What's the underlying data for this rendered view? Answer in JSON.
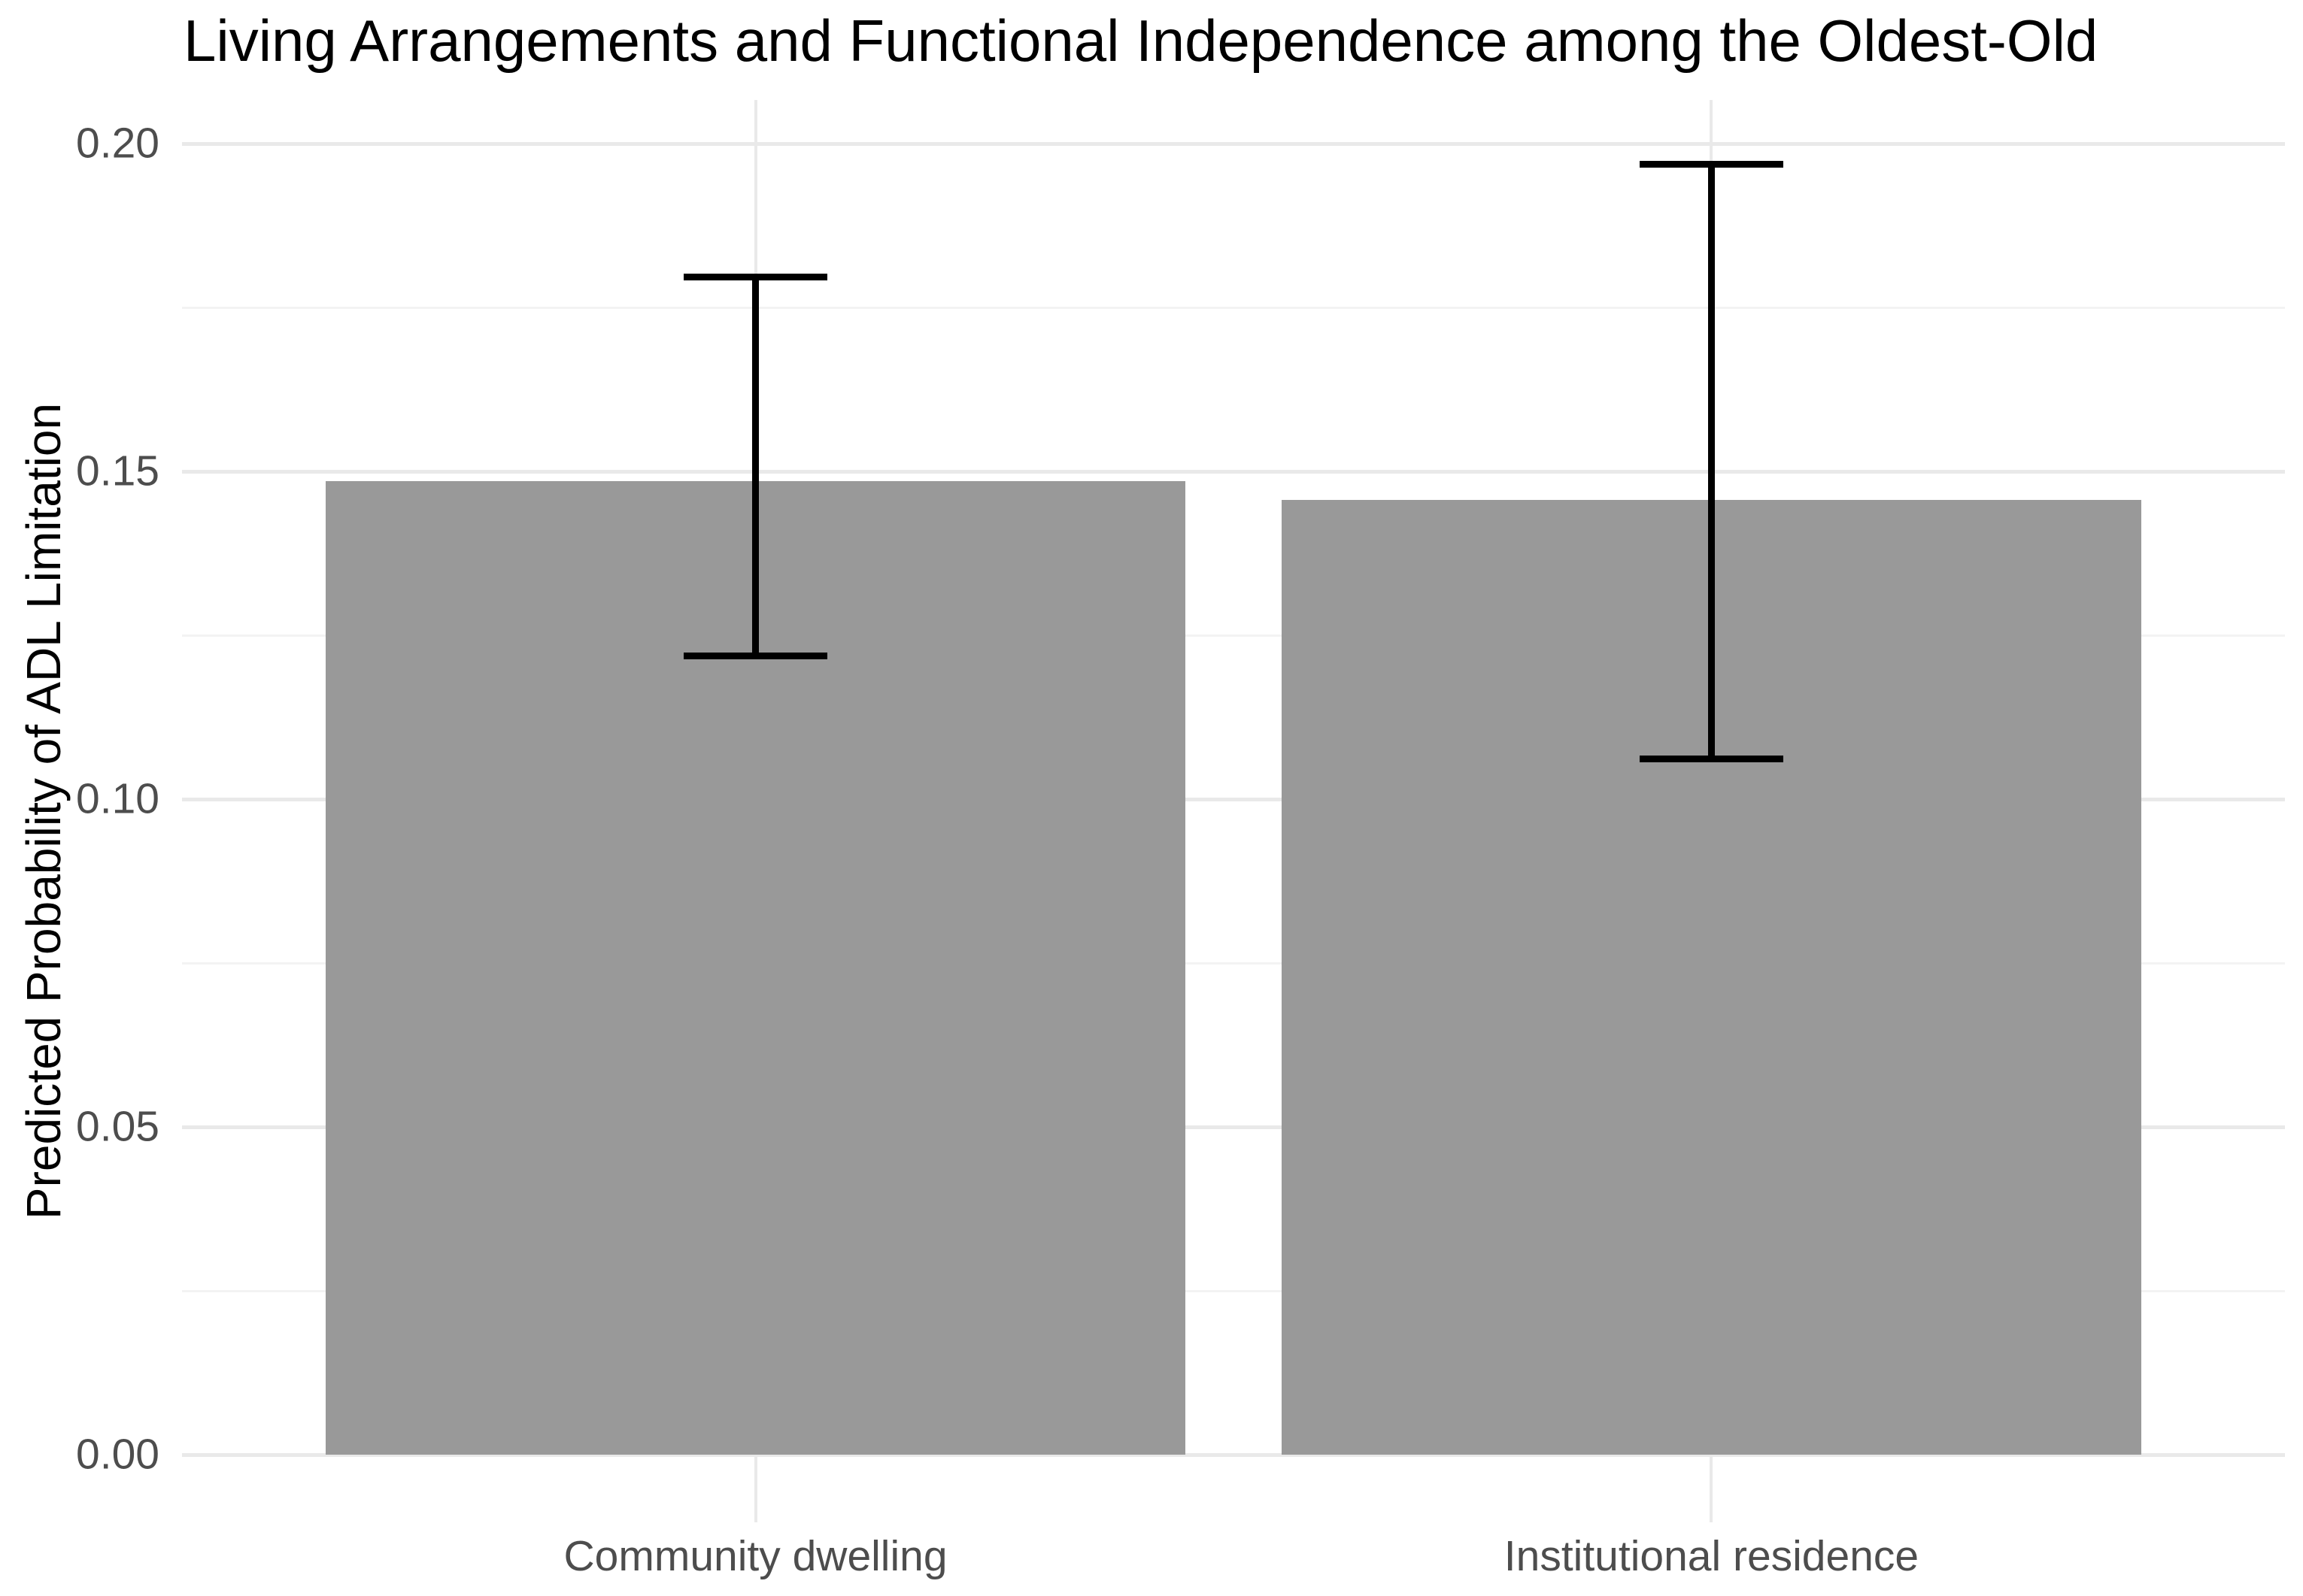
{
  "chart_data": {
    "type": "bar",
    "title": "Living Arrangements and Functional Independence among the Oldest-Old",
    "xlabel": "",
    "ylabel": "Predicted Probability of ADL Limitation",
    "categories": [
      "Community dwelling",
      "Institutional residence"
    ],
    "values": [
      0.1485,
      0.1456
    ],
    "error_low": [
      0.1219,
      0.1061
    ],
    "error_high": [
      0.1797,
      0.1969
    ],
    "y_ticks": [
      {
        "value": 0.0,
        "label": "0.00"
      },
      {
        "value": 0.05,
        "label": "0.05"
      },
      {
        "value": 0.1,
        "label": "0.10"
      },
      {
        "value": 0.15,
        "label": "0.15"
      },
      {
        "value": 0.2,
        "label": "0.20"
      }
    ],
    "y_minor_ticks": [
      0.025,
      0.075,
      0.125,
      0.175
    ],
    "ylim": [
      -0.0103,
      0.2067
    ],
    "legend": "none",
    "grid": "horizontal major+minor, vertical per category",
    "colors": {
      "bar_fill": "#999999",
      "error_bar": "#000000",
      "grid_major": "#e9e9e9",
      "grid_minor": "#f3f3f3",
      "axis_text": "#4d4d4d",
      "title_text": "#000000",
      "background": "#ffffff"
    }
  }
}
